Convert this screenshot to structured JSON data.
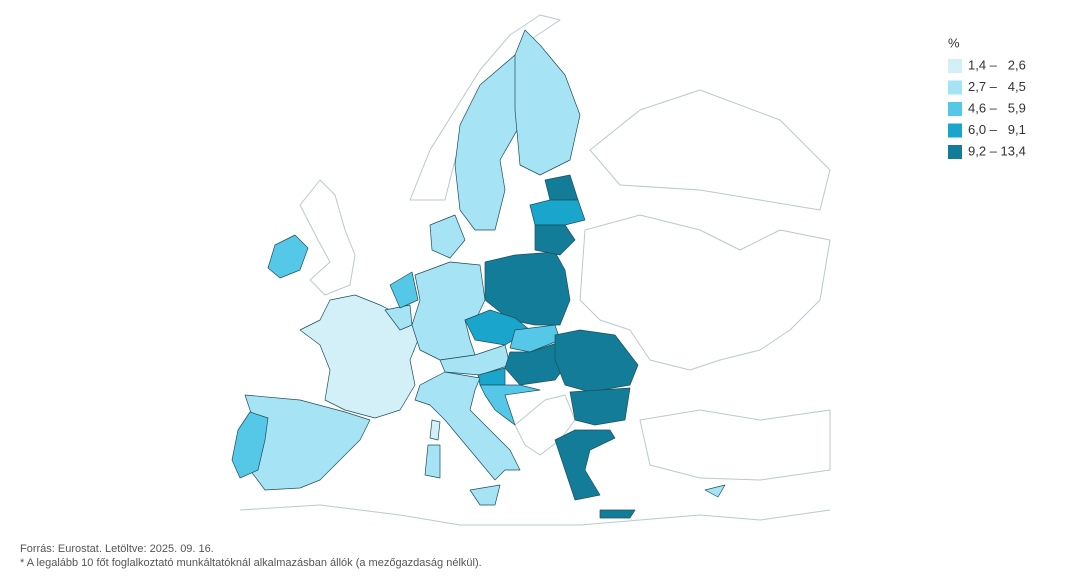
{
  "legend": {
    "title": "%",
    "items": [
      {
        "label": "1,4 –   2,6",
        "color": "#d3f0f8"
      },
      {
        "label": "2,7 –   4,5",
        "color": "#a5e3f5"
      },
      {
        "label": "4,6 –   5,9",
        "color": "#55c8e8"
      },
      {
        "label": "6,0 –   9,1",
        "color": "#1aa6cc"
      },
      {
        "label": "9,2 – 13,4",
        "color": "#137d99"
      }
    ]
  },
  "footer": {
    "source": "Forrás: Eurostat. Letöltve: 2025. 09. 16.",
    "note": "* A legalább 10 főt foglalkoztató munkáltatóknál alkalmazásban állók (a mezőgazdaság nélkül)."
  }
}
